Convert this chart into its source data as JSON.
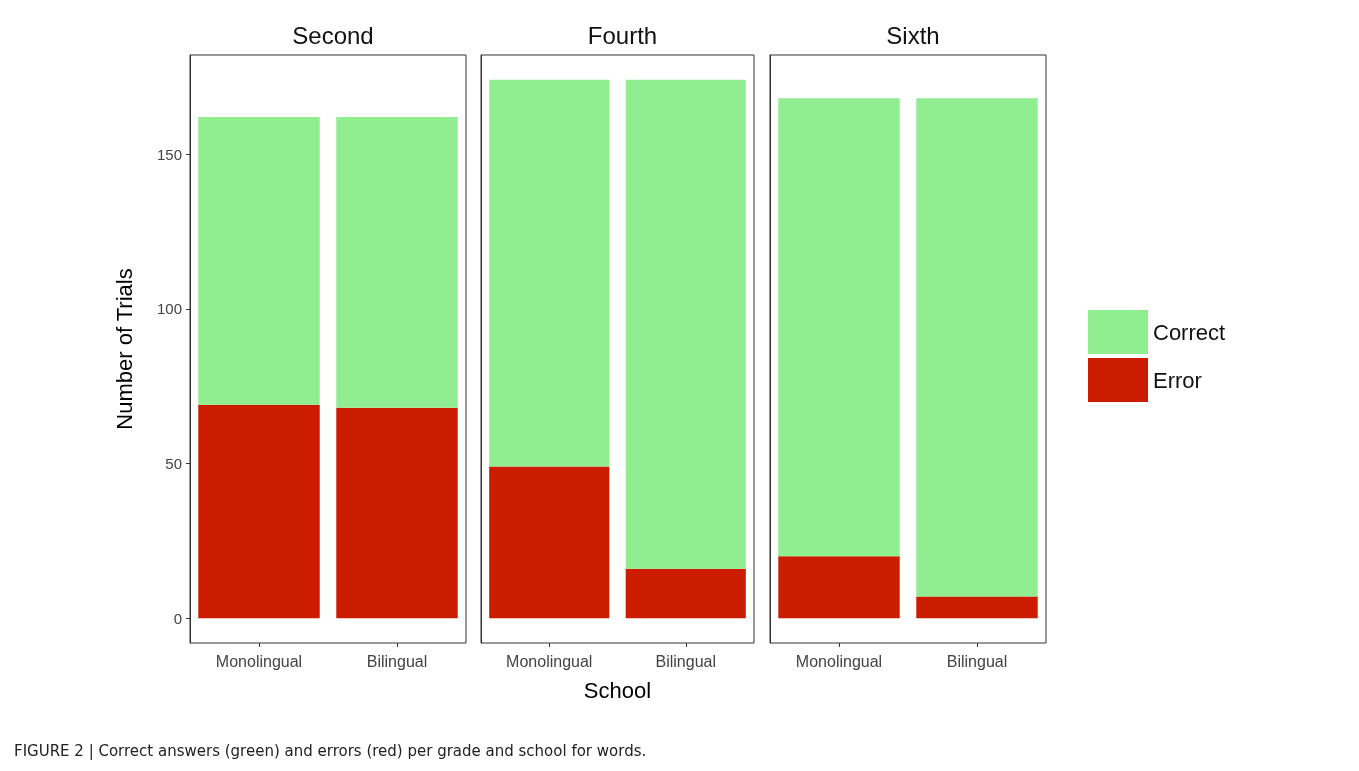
{
  "chart_data": [
    {
      "type": "bar",
      "title": "Second",
      "ylabel": "Number of Trials",
      "categories": [
        "Monolingual",
        "Bilingual"
      ],
      "stacked": true,
      "ylim": [
        -8,
        182
      ],
      "yticks": [
        0,
        50,
        100,
        150
      ],
      "grid": false,
      "legend": false,
      "series": [
        {
          "color": "#cc1c00",
          "values": [
            69,
            68
          ]
        },
        {
          "color": "#90ee90",
          "values": [
            93,
            94
          ]
        }
      ],
      "annotations": [
        "FIGURE 2 | Correct answers (green) and errors (red) per grade and school for words."
      ]
    },
    {
      "type": "bar",
      "title": "Fourth",
      "xlabel": "School",
      "categories": [
        "Monolingual",
        "Bilingual"
      ],
      "stacked": true,
      "ylim": [
        -8,
        182
      ],
      "tick_labels": "x",
      "grid": false,
      "legend": false,
      "series": [
        {
          "color": "#cc1c00",
          "values": [
            49,
            16
          ]
        },
        {
          "color": "#90ee90",
          "values": [
            125,
            158
          ]
        }
      ]
    },
    {
      "type": "bar",
      "title": "Sixth",
      "categories": [
        "Monolingual",
        "Bilingual"
      ],
      "stacked": true,
      "ylim": [
        -8,
        182
      ],
      "tick_labels": "x",
      "grid": false,
      "legend": "right",
      "series": [
        {
          "name": "Error",
          "color": "#cc1c00",
          "values": [
            20,
            7
          ]
        },
        {
          "name": "Correct",
          "color": "#90ee90",
          "values": [
            148,
            161
          ]
        }
      ]
    }
  ]
}
